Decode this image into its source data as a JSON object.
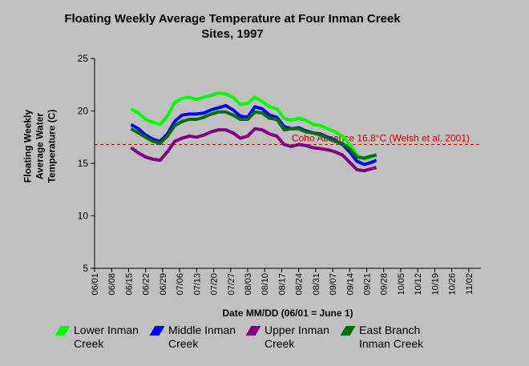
{
  "chart_data": {
    "type": "line",
    "title": "Floating Weekly Average Temperature at Four Inman Creek Sites, 1997",
    "xlabel": "Date MM/DD (06/01 = June 1)",
    "ylabel": "Floating Weekly Average Water Temperature (C)",
    "x": [
      "06/16",
      "06/19",
      "06/22",
      "06/25",
      "06/28",
      "07/01",
      "07/04",
      "07/07",
      "07/10",
      "07/13",
      "07/16",
      "07/19",
      "07/22",
      "07/25",
      "07/28",
      "07/31",
      "08/03",
      "08/06",
      "08/09",
      "08/12",
      "08/15",
      "08/18",
      "08/21",
      "08/24",
      "08/27",
      "08/30",
      "09/02",
      "09/05",
      "09/08",
      "09/11",
      "09/14",
      "09/17",
      "09/20",
      "09/23",
      "09/25"
    ],
    "series": [
      {
        "name": "Lower Inman Creek",
        "color": "#00ff00",
        "values": [
          20.2,
          19.8,
          19.2,
          18.9,
          18.7,
          19.5,
          20.8,
          21.2,
          21.3,
          21.1,
          21.3,
          21.5,
          21.7,
          21.6,
          21.3,
          20.6,
          20.7,
          21.3,
          20.9,
          20.4,
          20.2,
          19.3,
          19.1,
          19.3,
          19.1,
          18.7,
          18.6,
          18.3,
          18.0,
          17.6,
          16.8,
          15.8,
          15.4,
          15.6,
          15.8
        ]
      },
      {
        "name": "Middle Inman Creek",
        "color": "#0000ff",
        "values": [
          18.7,
          18.3,
          17.7,
          17.3,
          17.1,
          17.8,
          19.0,
          19.6,
          19.7,
          19.7,
          19.8,
          20.1,
          20.3,
          20.5,
          20.1,
          19.5,
          19.4,
          20.4,
          20.2,
          19.6,
          19.4,
          18.5,
          18.3,
          18.4,
          18.1,
          17.9,
          17.8,
          17.5,
          17.2,
          16.8,
          16.1,
          15.2,
          14.9,
          15.1,
          15.3
        ]
      },
      {
        "name": "Upper Inman Creek",
        "color": "#800080",
        "values": [
          16.5,
          16.0,
          15.6,
          15.4,
          15.3,
          16.1,
          17.1,
          17.4,
          17.6,
          17.5,
          17.7,
          18.0,
          18.2,
          18.2,
          17.9,
          17.4,
          17.6,
          18.3,
          18.2,
          17.8,
          17.6,
          16.8,
          16.6,
          16.8,
          16.7,
          16.5,
          16.4,
          16.3,
          16.1,
          15.8,
          15.1,
          14.4,
          14.3,
          14.5,
          14.6
        ]
      },
      {
        "name": "East Branch Inman Creek",
        "color": "#007000",
        "values": [
          18.3,
          17.9,
          17.5,
          17.1,
          16.9,
          17.6,
          18.6,
          19.0,
          19.2,
          19.2,
          19.4,
          19.7,
          19.9,
          19.9,
          19.6,
          19.2,
          19.2,
          19.9,
          19.8,
          19.3,
          19.2,
          18.2,
          18.3,
          18.3,
          18.0,
          17.9,
          17.7,
          17.4,
          17.1,
          16.9,
          16.4,
          15.6,
          15.5,
          15.7,
          15.8
        ]
      }
    ],
    "xlim": [
      "06/01",
      "11/07"
    ],
    "xticks": [
      "06/01",
      "06/08",
      "06/15",
      "06/22",
      "06/29",
      "07/06",
      "07/13",
      "07/20",
      "07/27",
      "08/03",
      "08/10",
      "08/17",
      "08/24",
      "08/31",
      "09/07",
      "09/14",
      "09/21",
      "09/28",
      "10/05",
      "10/12",
      "10/19",
      "10/26",
      "11/02"
    ],
    "ylim": [
      5,
      25
    ],
    "yticks": [
      5,
      10,
      15,
      20,
      25
    ],
    "annotations": [
      {
        "text": "Coho Absence 16.8°C (Welsh et al. 2001)",
        "value": 16.8,
        "color": "#cc0000"
      }
    ],
    "legend": "bottom"
  }
}
